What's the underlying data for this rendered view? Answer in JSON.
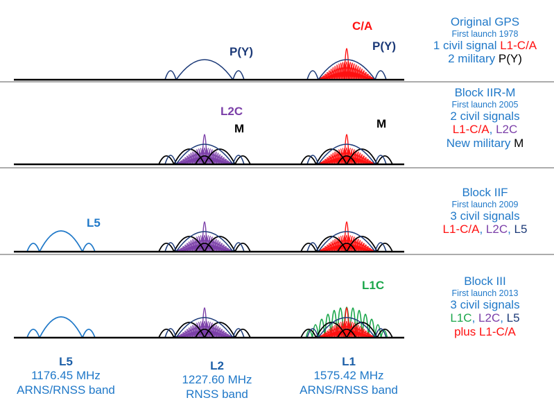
{
  "colors": {
    "blue": "#1f78c8",
    "navy": "#1c3a78",
    "red": "#ff1010",
    "purple": "#7b3fa8",
    "black": "#000000",
    "green": "#1aa64a",
    "gray": "#5a5a5a"
  },
  "generations": [
    {
      "title": "Original GPS",
      "subtitle": "First launch 1978",
      "line3": [
        {
          "t": "1 civil signal ",
          "c": "blue"
        },
        {
          "t": "L1-C/A",
          "c": "red"
        }
      ],
      "line4": [
        {
          "t": "2 military ",
          "c": "blue"
        },
        {
          "t": "P(Y)",
          "c": "black"
        }
      ],
      "labels": {
        "p_y_l2": "P(Y)",
        "ca": "C/A",
        "p_y_l1": "P(Y)"
      }
    },
    {
      "title": "Block IIR-M",
      "subtitle": "First launch 2005",
      "line3": [
        {
          "t": "2 civil signals",
          "c": "blue"
        }
      ],
      "line4": [
        {
          "t": "L1-C/A",
          "c": "red"
        },
        {
          "t": ", ",
          "c": "blue"
        },
        {
          "t": "L2C",
          "c": "purple"
        }
      ],
      "line5": [
        {
          "t": "New military ",
          "c": "blue"
        },
        {
          "t": "M",
          "c": "black"
        }
      ],
      "labels": {
        "l2c": "L2C",
        "m_l2": "M",
        "m_l1": "M"
      }
    },
    {
      "title": "Block IIF",
      "subtitle": "First launch 2009",
      "line3": [
        {
          "t": "3 civil signals",
          "c": "blue"
        }
      ],
      "line4": [
        {
          "t": "L1-C/A",
          "c": "red"
        },
        {
          "t": ", ",
          "c": "blue"
        },
        {
          "t": "L2C",
          "c": "purple"
        },
        {
          "t": ", ",
          "c": "blue"
        },
        {
          "t": "L5",
          "c": "navy"
        }
      ],
      "labels": {
        "l5": "L5"
      }
    },
    {
      "title": "Block III",
      "subtitle": "First launch 2013",
      "line3": [
        {
          "t": "3 civil signals",
          "c": "blue"
        }
      ],
      "line4": [
        {
          "t": "L1C",
          "c": "green"
        },
        {
          "t": ", ",
          "c": "blue"
        },
        {
          "t": "L2C",
          "c": "purple"
        },
        {
          "t": ", ",
          "c": "blue"
        },
        {
          "t": "L5",
          "c": "navy"
        }
      ],
      "line5": [
        {
          "t": "plus L1-C/A",
          "c": "red"
        }
      ],
      "labels": {
        "l1c": "L1C"
      }
    }
  ],
  "bands": [
    {
      "name": "L5",
      "freq": "1176.45 MHz",
      "desc": "ARNS/RNSS band"
    },
    {
      "name": "L2",
      "freq": "1227.60 MHz",
      "desc": "RNSS band"
    },
    {
      "name": "L1",
      "freq": "1575.42 MHz",
      "desc": "ARNS/RNSS band"
    }
  ]
}
